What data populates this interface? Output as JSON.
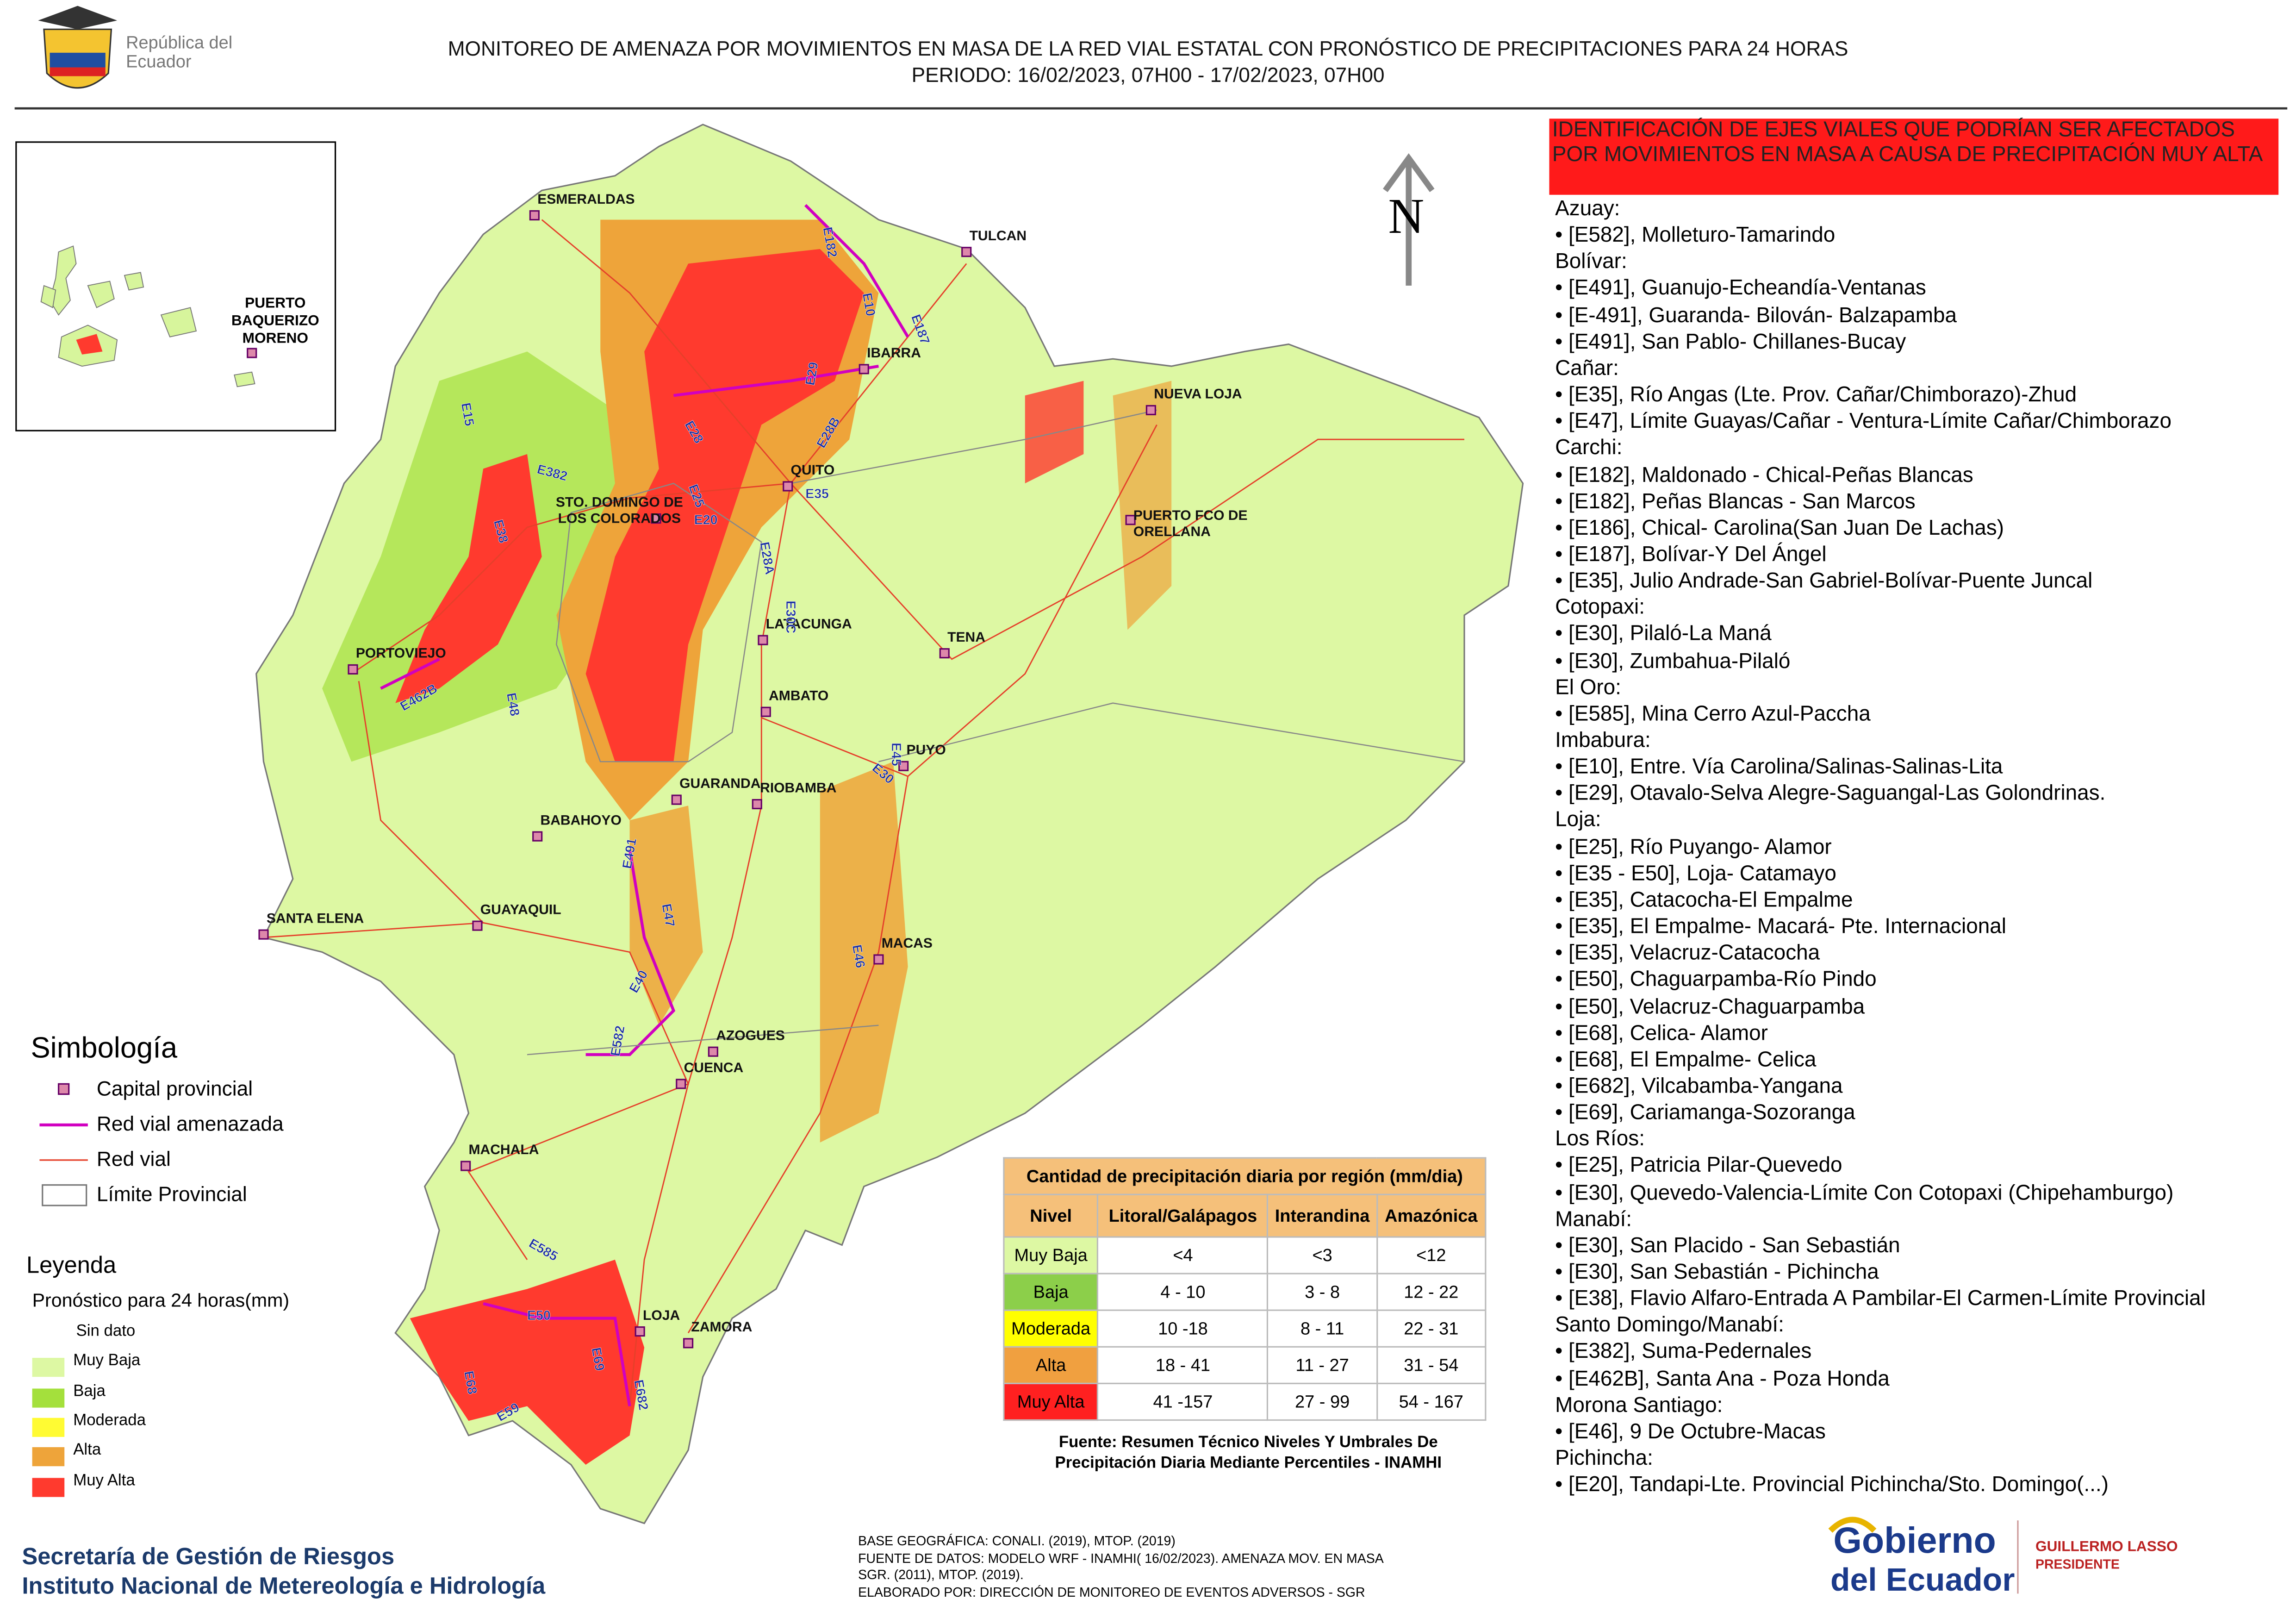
{
  "header": {
    "logo_text": "República del Ecuador",
    "title": "MONITOREO DE AMENAZA POR MOVIMIENTOS EN MASA DE LA RED VIAL  ESTATAL  CON PRONÓSTICO  DE  PRECIPITACIONES PARA 24 HORAS",
    "period": "PERIODO: 16/02/2023, 07H00 - 17/02/2023, 07H00"
  },
  "north": "N",
  "inset": {
    "city": "PUERTO BAQUERIZO MORENO"
  },
  "cities": [
    "ESMERALDAS",
    "TULCAN",
    "IBARRA",
    "NUEVA LOJA",
    "QUITO",
    "STO. DOMINGO DE LOS COLORADOS",
    "PUERTO FCO DE ORELLANA",
    "LATACUNGA",
    "TENA",
    "PORTOVIEJO",
    "AMBATO",
    "PUYO",
    "GUARANDA",
    "RIOBAMBA",
    "BABAHOYO",
    "GUAYAQUIL",
    "SANTA ELENA",
    "MACAS",
    "AZOGUES",
    "CUENCA",
    "MACHALA",
    "LOJA",
    "ZAMORA"
  ],
  "roads": [
    "E182",
    "E10",
    "E187",
    "E29",
    "E28",
    "E28B",
    "E15",
    "E382",
    "E25",
    "E38",
    "E20",
    "E35",
    "E28A",
    "E30C",
    "E462B",
    "E48",
    "E45",
    "E30",
    "E491",
    "E47",
    "E46",
    "E40",
    "E582",
    "E585",
    "E50",
    "E59",
    "E68",
    "E682",
    "E69"
  ],
  "symbology": {
    "title": "Simbología",
    "items": [
      "Capital provincial",
      "Red vial amenazada",
      "Red vial",
      "Límite Provincial"
    ]
  },
  "legend": {
    "title": "Leyenda",
    "subtitle": "Pronóstico para 24 horas(mm)",
    "classes": [
      {
        "label": "Sin dato",
        "color": "#ffffff"
      },
      {
        "label": "Muy Baja",
        "color": "#ddf8a3"
      },
      {
        "label": "Baja",
        "color": "#a4e03c"
      },
      {
        "label": "Moderada",
        "color": "#fffb33"
      },
      {
        "label": "Alta",
        "color": "#eea43a"
      },
      {
        "label": "Muy Alta",
        "color": "#ff3a2e"
      }
    ]
  },
  "table": {
    "title": "Cantidad de precipitación diaria por región (mm/dia)",
    "header": [
      "Nivel",
      "Litoral/Galápagos",
      "Interandina",
      "Amazónica"
    ],
    "rows": [
      [
        "Muy Baja",
        "<4",
        "<3",
        "<12"
      ],
      [
        "Baja",
        "4 - 10",
        "3 - 8",
        "12 - 22"
      ],
      [
        "Moderada",
        "10 -18",
        "8 - 11",
        "22 - 31"
      ],
      [
        "Alta",
        "18 - 41",
        "11 - 27",
        "31 - 54"
      ],
      [
        "Muy Alta",
        "41 -157",
        "27 - 99",
        "54 - 167"
      ]
    ],
    "source": "Fuente: Resumen Técnico Niveles Y Umbrales De Precipitación Diaria Mediante Percentiles - INAMHI"
  },
  "panel": {
    "heading": "IDENTIFICACIÓN DE EJES VIALES QUE PODRÍAN SER AFECTADOS POR MOVIMIENTOS EN MASA A CAUSA DE PRECIPITACIÓN MUY ALTA",
    "groups": [
      {
        "province": "Azuay:",
        "items": [
          "• [E582], Molleturo-Tamarindo"
        ]
      },
      {
        "province": "Bolívar:",
        "items": [
          "• [E491], Guanujo-Echeandía-Ventanas",
          "• [E-491], Guaranda- Bilován- Balzapamba",
          "• [E491], San Pablo- Chillanes-Bucay"
        ]
      },
      {
        "province": "Cañar:",
        "items": [
          "• [E35], Río Angas (Lte. Prov. Cañar/Chimborazo)-Zhud",
          "• [E47], Límite Guayas/Cañar - Ventura-Límite Cañar/Chimborazo"
        ]
      },
      {
        "province": "Carchi:",
        "items": [
          "• [E182], Maldonado - Chical-Peñas Blancas",
          "• [E182], Peñas Blancas - San Marcos",
          "• [E186], Chical- Carolina(San Juan De Lachas)",
          "• [E187], Bolívar-Y Del Ángel",
          "• [E35], Julio Andrade-San Gabriel-Bolívar-Puente Juncal"
        ]
      },
      {
        "province": "Cotopaxi:",
        "items": [
          "• [E30], Pilaló-La Maná",
          "• [E30], Zumbahua-Pilaló"
        ]
      },
      {
        "province": "El Oro:",
        "items": [
          "• [E585], Mina Cerro Azul-Paccha"
        ]
      },
      {
        "province": "Imbabura:",
        "items": [
          "• [E10], Entre. Vía Carolina/Salinas-Salinas-Lita",
          "• [E29], Otavalo-Selva Alegre-Saguangal-Las Golondrinas."
        ]
      },
      {
        "province": "Loja:",
        "items": [
          "• [E25], Río Puyango- Alamor",
          "• [E35 - E50], Loja- Catamayo",
          "• [E35], Catacocha-El Empalme",
          "• [E35], El Empalme- Macará- Pte. Internacional",
          "• [E35], Velacruz-Catacocha",
          "• [E50], Chaguarpamba-Río Pindo",
          "• [E50], Velacruz-Chaguarpamba",
          "• [E68], Celica- Alamor",
          "• [E68], El Empalme- Celica",
          "• [E682], Vilcabamba-Yangana",
          "• [E69], Cariamanga-Sozoranga"
        ]
      },
      {
        "province": "Los Ríos:",
        "items": [
          "• [E25], Patricia Pilar-Quevedo",
          "• [E30], Quevedo-Valencia-Límite Con Cotopaxi (Chipehamburgo)"
        ]
      },
      {
        "province": "Manabí:",
        "items": [
          "• [E30], San Placido - San Sebastián",
          "• [E30], San Sebastián - Pichincha",
          "• [E38], Flavio Alfaro-Entrada A Pambilar-El Carmen-Límite Provincial"
        ]
      },
      {
        "province": "Santo Domingo/Manabí:",
        "items": [
          "• [E382], Suma-Pedernales",
          "• [E462B], Santa Ana - Poza Honda"
        ]
      },
      {
        "province": "Morona Santiago:",
        "items": [
          "• [E46], 9 De Octubre-Macas"
        ]
      },
      {
        "province": "Pichincha:",
        "items": [
          "• [E20], Tandapi-Lte. Provincial Pichincha/Sto. Domingo(...)"
        ]
      }
    ]
  },
  "footer": {
    "org1": "Secretaría de Gestión de Riesgos",
    "org2": "Instituto Nacional de Metereología e Hidrología",
    "credits": [
      "BASE GEOGRÁFICA: CONALI. (2019), MTOP. (2019)",
      "FUENTE DE DATOS: MODELO WRF - INAMHI( 16/02/2023).  AMENAZA MOV. EN MASA",
      "SGR. (2011), MTOP. (2019).",
      "ELABORADO POR: DIRECCIÓN DE MONITOREO DE EVENTOS ADVERSOS - SGR"
    ],
    "gov1": "Gobierno",
    "gov2": "del Ecuador",
    "president": "GUILLERMO LASSO",
    "president_role": "PRESIDENTE"
  }
}
